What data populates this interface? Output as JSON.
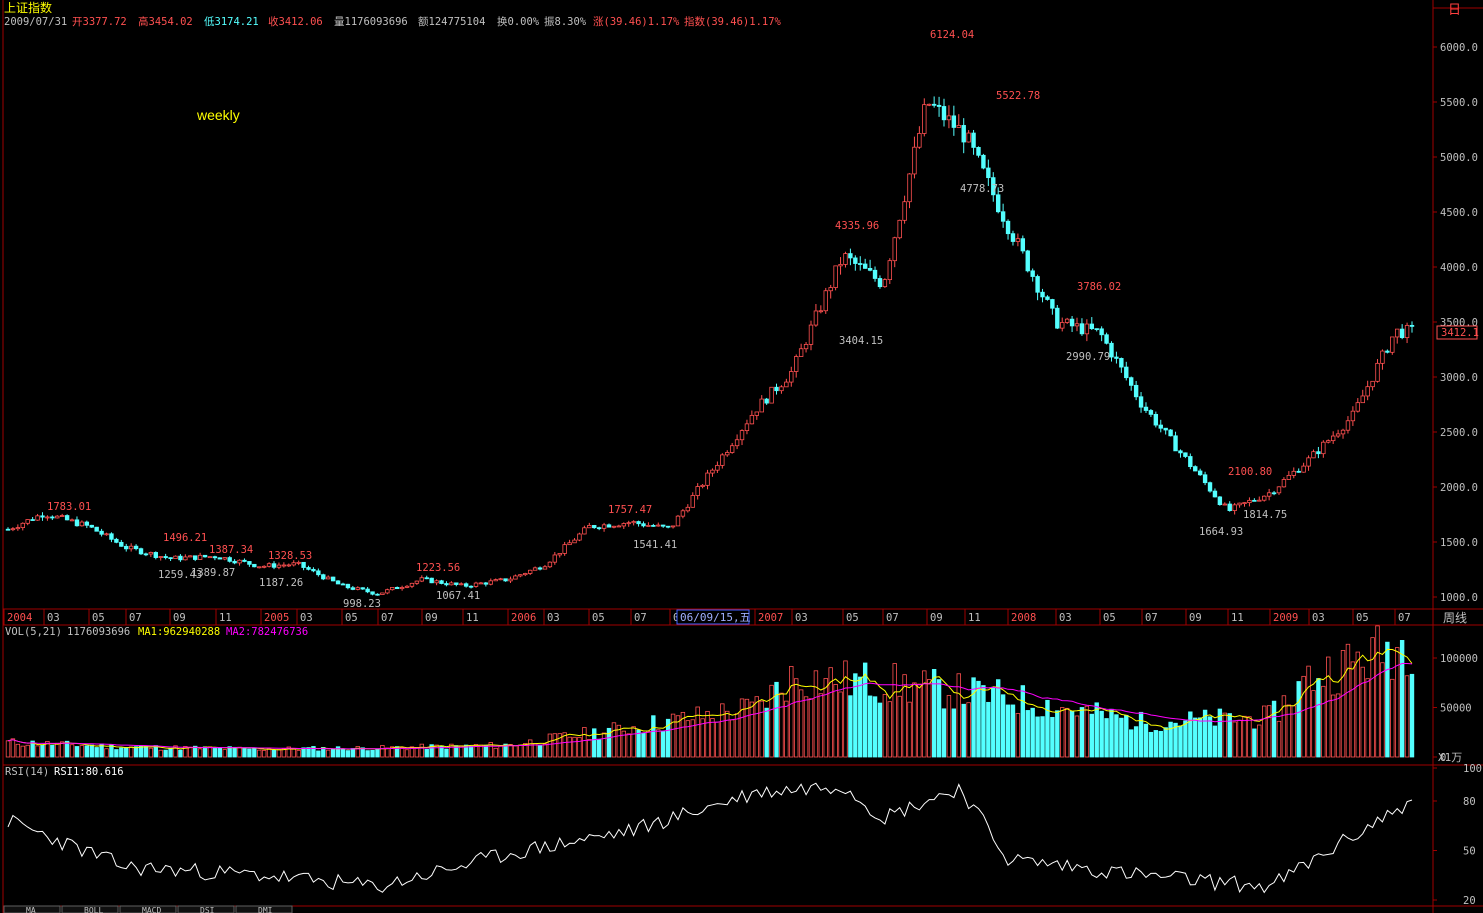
{
  "header": {
    "title": "上证指数",
    "date": "2009/07/31",
    "open": "开3377.72",
    "high": "高3454.02",
    "low": "低3174.21",
    "close": "收3412.06",
    "volume": "量1176093696",
    "amount": "额124775104",
    "turnover": "换0.00%",
    "amplitude": "振8.30%",
    "change": "涨(39.46)1.17%",
    "index_change": "指数(39.46)1.17%"
  },
  "corner_label": "日",
  "period_label": "weekly",
  "cursor_date": "06/09/15,五",
  "period_button": "周线",
  "current_price": "3412.1",
  "x_axis_ticks": [
    "2004",
    "03",
    "05",
    "07",
    "09",
    "11",
    "2005",
    "03",
    "05",
    "07",
    "09",
    "11",
    "2006",
    "03",
    "05",
    "07",
    "09",
    "2007",
    "03",
    "05",
    "07",
    "09",
    "11",
    "2008",
    "03",
    "05",
    "07",
    "09",
    "11",
    "2009",
    "03",
    "05",
    "07"
  ],
  "price_axis_ticks": [
    "6000.0",
    "5500.0",
    "5000.0",
    "4500.0",
    "4000.0",
    "3500.0",
    "3000.0",
    "2500.0",
    "2000.0",
    "1500.0",
    "1000.0"
  ],
  "volume_panel": {
    "legend_name": "VOL(5,21)",
    "legend_value": "1176093696",
    "ma1_label": "MA1:962940288",
    "ma2_label": "MA2:782476736",
    "axis_ticks": [
      "100000",
      "50000",
      "0"
    ],
    "unit": "X1万",
    "colors": {
      "up": "#ff5050",
      "down": "#54ffff",
      "ma1": "#ffff00",
      "ma2": "#ff00ff"
    }
  },
  "rsi_panel": {
    "legend_name": "RSI(14)",
    "legend_value": "RSI1:80.616",
    "axis_ticks": [
      "100",
      "80",
      "50",
      "20"
    ]
  },
  "bottom_tabs": [
    "MA",
    "BOLL",
    "MACD",
    "DSI",
    "DMI"
  ],
  "chart_data": [
    {
      "type": "candlestick",
      "title": "上证指数",
      "frequency": "weekly",
      "ylim": [
        950,
        6200
      ],
      "x": [
        "2004",
        "2004-03",
        "2004-05",
        "2004-07",
        "2004-09",
        "2004-11",
        "2005",
        "2005-03",
        "2005-05",
        "2005-07",
        "2005-09",
        "2005-11",
        "2006",
        "2006-03",
        "2006-05",
        "2006-07",
        "2006-09",
        "2007",
        "2007-03",
        "2007-05",
        "2007-07",
        "2007-09",
        "2007-11",
        "2008",
        "2008-03",
        "2008-05",
        "2008-07",
        "2008-09",
        "2008-11",
        "2009",
        "2009-03",
        "2009-05",
        "2009-07"
      ],
      "close": [
        1600,
        1760,
        1640,
        1450,
        1350,
        1370,
        1280,
        1300,
        1100,
        1030,
        1160,
        1100,
        1160,
        1290,
        1640,
        1680,
        1620,
        2700,
        3050,
        4100,
        3850,
        5500,
        5200,
        4380,
        3500,
        3400,
        2750,
        2250,
        1780,
        1950,
        2250,
        2650,
        3412
      ],
      "annotations": [
        {
          "label": "1783.01",
          "type": "high"
        },
        {
          "label": "1496.21",
          "type": "high"
        },
        {
          "label": "1259.43",
          "type": "low"
        },
        {
          "label": "1389.87",
          "type": "low"
        },
        {
          "label": "1387.34",
          "type": "high"
        },
        {
          "label": "1187.26",
          "type": "low"
        },
        {
          "label": "1328.53",
          "type": "high"
        },
        {
          "label": "998.23",
          "type": "low"
        },
        {
          "label": "1223.56",
          "type": "high"
        },
        {
          "label": "1067.41",
          "type": "low"
        },
        {
          "label": "1757.47",
          "type": "high"
        },
        {
          "label": "1541.41",
          "type": "low"
        },
        {
          "label": "4335.96",
          "type": "high"
        },
        {
          "label": "3404.15",
          "type": "low"
        },
        {
          "label": "6124.04",
          "type": "high"
        },
        {
          "label": "4778.73",
          "type": "low"
        },
        {
          "label": "5522.78",
          "type": "high"
        },
        {
          "label": "3786.02",
          "type": "high"
        },
        {
          "label": "2990.79",
          "type": "low"
        },
        {
          "label": "1664.93",
          "type": "low"
        },
        {
          "label": "2100.80",
          "type": "high"
        },
        {
          "label": "1814.75",
          "type": "low"
        }
      ]
    },
    {
      "type": "bar",
      "title": "VOL(5,21)",
      "ylim": [
        0,
        120000
      ],
      "x": [
        "2004",
        "2004-07",
        "2005",
        "2005-07",
        "2006",
        "2006-07",
        "2007",
        "2007-03",
        "2007-07",
        "2008",
        "2008-07",
        "2009",
        "2009-03",
        "2009-07"
      ],
      "values": [
        15000,
        10000,
        8000,
        9000,
        12000,
        30000,
        50000,
        80000,
        75000,
        60000,
        35000,
        40000,
        80000,
        117609
      ]
    },
    {
      "type": "line",
      "title": "RSI(14)",
      "ylim": [
        20,
        100
      ],
      "x": [
        "2004",
        "2004-07",
        "2005",
        "2005-07",
        "2006",
        "2006-07",
        "2007",
        "2007-05",
        "2007-07",
        "2007-10",
        "2008",
        "2008-07",
        "2009",
        "2009-07"
      ],
      "values": [
        68,
        40,
        35,
        28,
        48,
        62,
        85,
        90,
        70,
        88,
        45,
        35,
        28,
        80.616
      ]
    }
  ]
}
